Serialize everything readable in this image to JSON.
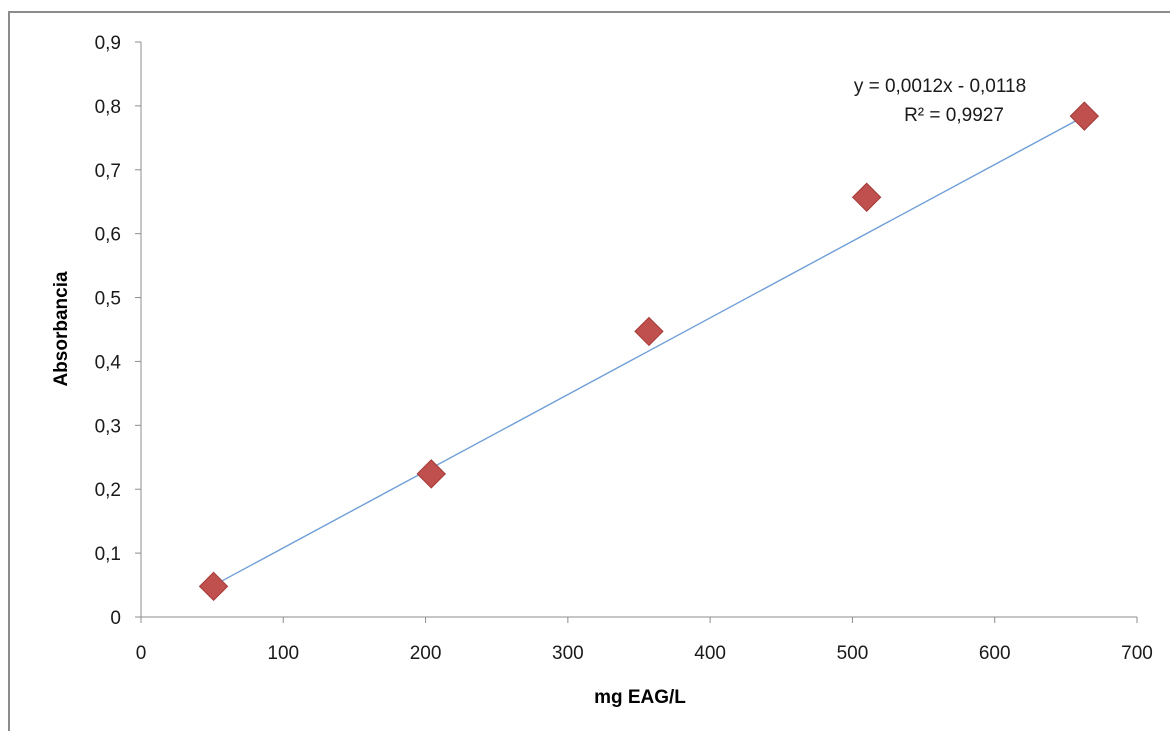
{
  "chart_data": {
    "type": "scatter",
    "title": "",
    "xlabel": "mg EAG/L",
    "ylabel": "Absorbancia",
    "xlim": [
      0,
      700
    ],
    "ylim": [
      0,
      0.9
    ],
    "x_ticks": [
      0,
      100,
      200,
      300,
      400,
      500,
      600,
      700
    ],
    "x_tick_labels": [
      "0",
      "100",
      "200",
      "300",
      "400",
      "500",
      "600",
      "700"
    ],
    "y_ticks": [
      0,
      0.1,
      0.2,
      0.3,
      0.4,
      0.5,
      0.6,
      0.7,
      0.8,
      0.9
    ],
    "y_tick_labels": [
      "0",
      "0,1",
      "0,2",
      "0,3",
      "0,4",
      "0,5",
      "0,6",
      "0,7",
      "0,8",
      "0,9"
    ],
    "grid": false,
    "legend": "none",
    "series": [
      {
        "x": [
          51,
          204,
          357,
          510,
          663
        ],
        "y": [
          0.048,
          0.224,
          0.447,
          0.657,
          0.784
        ],
        "color": "#c0504d",
        "marker": "diamond"
      }
    ],
    "trendline": {
      "type": "linear",
      "slope": 0.0012,
      "intercept": -0.0118,
      "x_range": [
        51,
        663
      ],
      "color": "#6f9fd8"
    },
    "annotations": {
      "equation": "y = 0,0012x - 0,0118",
      "r_squared": "R² = 0,9927"
    }
  }
}
